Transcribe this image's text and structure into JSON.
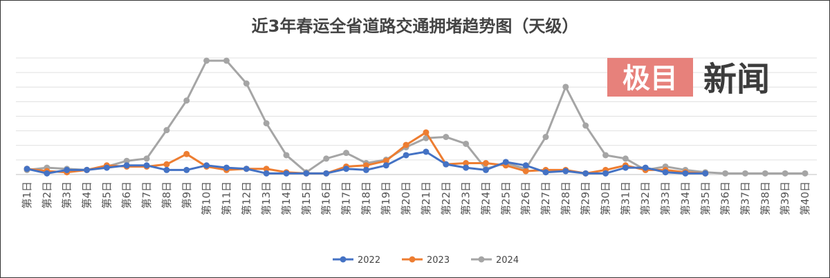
{
  "chart_data": {
    "type": "line",
    "title": "近3年春运全省道路交通拥堵趋势图（天级）",
    "categories": [
      "第1日",
      "第2日",
      "第3日",
      "第4日",
      "第5日",
      "第6日",
      "第7日",
      "第8日",
      "第9日",
      "第10日",
      "第11日",
      "第12日",
      "第13日",
      "第14日",
      "第15日",
      "第16日",
      "第17日",
      "第18日",
      "第19日",
      "第20日",
      "第21日",
      "第22日",
      "第23日",
      "第24日",
      "第25日",
      "第26日",
      "第27日",
      "第28日",
      "第29日",
      "第30日",
      "第31日",
      "第32日",
      "第33日",
      "第34日",
      "第35日",
      "第36日",
      "第37日",
      "第38日",
      "第39日",
      "第40日"
    ],
    "ylim": [
      0,
      100
    ],
    "grid": true,
    "legend_position": "bottom",
    "series": [
      {
        "name": "2022",
        "color": "#4472C4",
        "values": [
          5,
          1,
          4,
          4,
          6,
          8,
          8,
          4,
          4,
          8,
          6,
          5,
          1,
          1,
          1,
          1,
          5,
          4,
          8,
          17,
          20,
          9,
          6,
          4,
          11,
          8,
          2,
          3,
          1,
          1,
          6,
          6,
          2,
          1,
          1,
          null,
          null,
          null,
          null,
          null
        ]
      },
      {
        "name": "2023",
        "color": "#ED7D31",
        "values": [
          5,
          3,
          2,
          4,
          8,
          7,
          7,
          9,
          18,
          7,
          4,
          5,
          5,
          2,
          1,
          1,
          7,
          8,
          12,
          26,
          37,
          9,
          10,
          10,
          8,
          3,
          4,
          4,
          1,
          4,
          8,
          4,
          4,
          2,
          1,
          null,
          null,
          null,
          null,
          null
        ]
      },
      {
        "name": "2024",
        "color": "#A5A5A5",
        "values": [
          4,
          6,
          5,
          4,
          7,
          12,
          14,
          39,
          65,
          100,
          100,
          80,
          45,
          17,
          2,
          14,
          19,
          10,
          13,
          24,
          32,
          33,
          27,
          5,
          10,
          5,
          33,
          77,
          43,
          17,
          14,
          4,
          7,
          4,
          2,
          1,
          1,
          1,
          1,
          1
        ]
      }
    ]
  },
  "watermark": {
    "boxed": "极目",
    "text": "新闻",
    "box_color": "#E7817B"
  }
}
